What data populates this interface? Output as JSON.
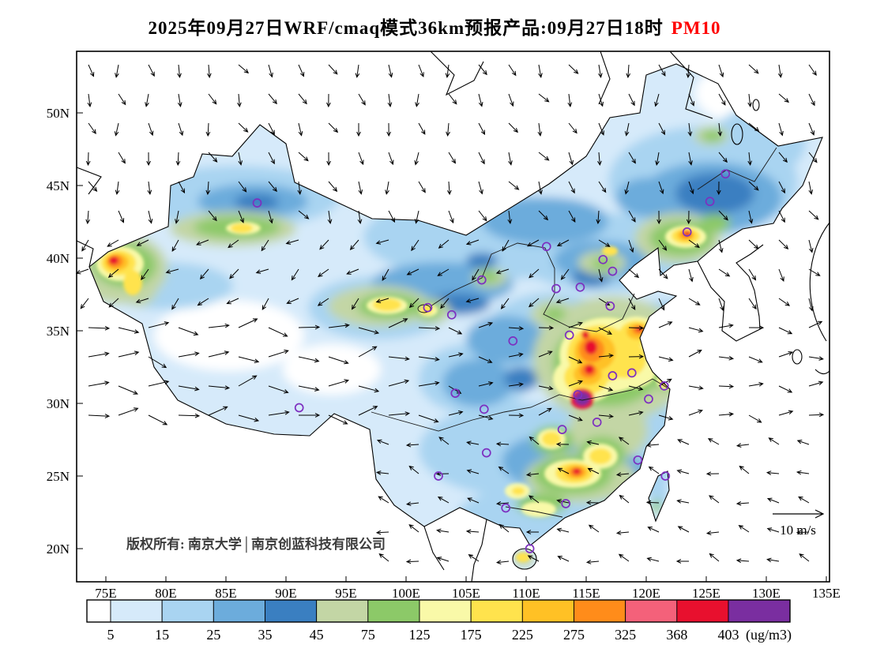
{
  "title": {
    "text": "2025年09月27日WRF/cmaq模式36km预报产品:09月27日18时",
    "pollutant": "PM10",
    "pollutant_color": "#ff0000"
  },
  "map": {
    "lat_ticks": [
      "50N",
      "45N",
      "40N",
      "35N",
      "30N",
      "25N",
      "20N"
    ],
    "lon_ticks": [
      "75E",
      "80E",
      "85E",
      "90E",
      "95E",
      "100E",
      "105E",
      "110E",
      "115E",
      "120E",
      "125E",
      "130E",
      "135E"
    ],
    "copyright": "版权所有: 南京大学│南京创蓝科技有限公司",
    "wind_scale_label": "10 m/s",
    "station_marker_color": "#7d2fc0",
    "stations_lonlat": [
      [
        87.6,
        43.8
      ],
      [
        101.8,
        36.6
      ],
      [
        103.8,
        36.1
      ],
      [
        106.3,
        38.5
      ],
      [
        111.7,
        40.8
      ],
      [
        112.5,
        37.9
      ],
      [
        116.4,
        39.9
      ],
      [
        117.2,
        39.1
      ],
      [
        114.5,
        38.0
      ],
      [
        117.0,
        36.7
      ],
      [
        113.6,
        34.7
      ],
      [
        108.9,
        34.3
      ],
      [
        104.1,
        30.7
      ],
      [
        106.5,
        29.6
      ],
      [
        114.3,
        30.6
      ],
      [
        117.2,
        31.9
      ],
      [
        118.8,
        32.1
      ],
      [
        121.5,
        31.2
      ],
      [
        120.2,
        30.3
      ],
      [
        115.9,
        28.7
      ],
      [
        113.0,
        28.2
      ],
      [
        106.7,
        26.6
      ],
      [
        102.7,
        25.0
      ],
      [
        108.3,
        22.8
      ],
      [
        113.3,
        23.1
      ],
      [
        119.3,
        26.1
      ],
      [
        121.6,
        25.0
      ],
      [
        110.3,
        20.0
      ],
      [
        123.4,
        41.8
      ],
      [
        125.3,
        43.9
      ],
      [
        126.6,
        45.8
      ],
      [
        91.1,
        29.7
      ]
    ]
  },
  "colorbar": {
    "labels": [
      "5",
      "15",
      "25",
      "35",
      "45",
      "75",
      "125",
      "175",
      "225",
      "275",
      "325",
      "368",
      "403"
    ],
    "unit": "(ug/m3)",
    "colors": [
      "#ffffff",
      "#d6eafa",
      "#a9d4f1",
      "#6cacdc",
      "#3a7fc1",
      "#c3d6a5",
      "#8cc968",
      "#f9f9a8",
      "#ffe34d",
      "#ffc125",
      "#ff8c1a",
      "#f4617a",
      "#e8102e",
      "#7a2ea0"
    ]
  }
}
